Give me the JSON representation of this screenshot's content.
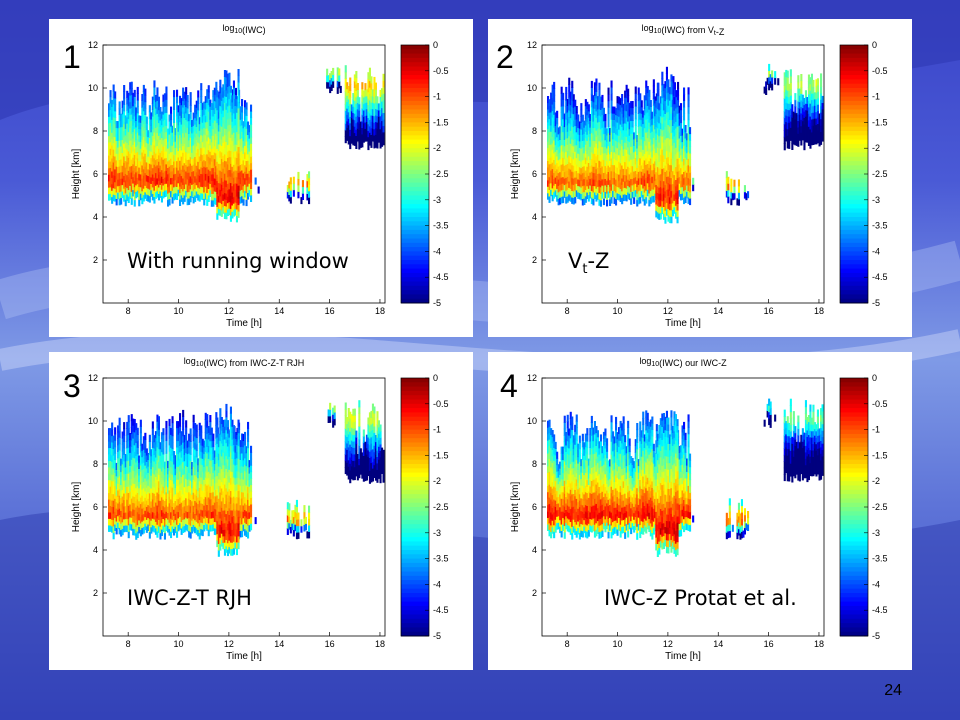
{
  "slide": {
    "page_number": "24"
  },
  "colorscale": {
    "name": "jet",
    "stops": [
      "#00007f",
      "#0000ff",
      "#007fff",
      "#00ffff",
      "#7fff7f",
      "#ffff00",
      "#ff7f00",
      "#ff0000",
      "#7f0000"
    ]
  },
  "chart_data": [
    {
      "type": "heatmap",
      "panel_number": "1",
      "caption": "With running window",
      "title": {
        "main": "log",
        "sub": "10",
        "rest": "(IWC)"
      },
      "xlabel": "Time [h]",
      "ylabel": "Height [km]",
      "xlim": [
        7,
        18.2
      ],
      "ylim": [
        0,
        12
      ],
      "xticks": [
        "8",
        "10",
        "12",
        "14",
        "16",
        "18"
      ],
      "yticks": [
        "2",
        "4",
        "6",
        "8",
        "10",
        "12"
      ],
      "colorbar": {
        "range": [
          -5,
          0
        ],
        "ticks": [
          "0",
          "-0.5",
          "-1",
          "-1.5",
          "-2",
          "-2.5",
          "-3",
          "-3.5",
          "-4",
          "-4.5",
          "-5"
        ]
      },
      "blobs": [
        {
          "x": [
            7.2,
            12.9
          ],
          "base": 4.6,
          "top": 10.4,
          "peak": -0.7,
          "core": 5.6
        },
        {
          "x": [
            11.5,
            12.4
          ],
          "base": 3.8,
          "top": 11.0,
          "peak": -0.4,
          "core": 4.8
        },
        {
          "x": [
            12.9,
            13.3
          ],
          "base": 5.2,
          "top": 6.0,
          "peak": -1.6,
          "core": 5.5
        },
        {
          "x": [
            14.3,
            15.2
          ],
          "base": 4.6,
          "top": 6.4,
          "peak": -1.0,
          "core": 5.4
        },
        {
          "x": [
            15.8,
            16.4
          ],
          "base": 9.8,
          "top": 11.2,
          "peak": -1.8,
          "core": 10.5
        },
        {
          "x": [
            16.6,
            18.1
          ],
          "base": 7.2,
          "top": 11.0,
          "peak": -1.4,
          "core": 10.0
        }
      ]
    },
    {
      "type": "heatmap",
      "panel_number": "2",
      "caption": "Vt-Z",
      "caption_parts": {
        "main": "V",
        "sub": "t",
        "rest": "-Z"
      },
      "title": {
        "main": "log",
        "sub": "10",
        "rest": "(IWC) from V",
        "sub2": "t",
        "rest2": "-Z"
      },
      "xlabel": "Time [h]",
      "ylabel": "Height [km]",
      "xlim": [
        7,
        18.2
      ],
      "ylim": [
        0,
        12
      ],
      "xticks": [
        "8",
        "10",
        "12",
        "14",
        "16",
        "18"
      ],
      "yticks": [
        "2",
        "4",
        "6",
        "8",
        "10",
        "12"
      ],
      "colorbar": {
        "range": [
          -5,
          0
        ],
        "ticks": [
          "0",
          "-0.5",
          "-1",
          "-1.5",
          "-2",
          "-2.5",
          "-3",
          "-3.5",
          "-4",
          "-4.5",
          "-5"
        ]
      },
      "blobs": [
        {
          "x": [
            7.2,
            12.9
          ],
          "base": 4.6,
          "top": 10.4,
          "peak": -0.9,
          "core": 5.5
        },
        {
          "x": [
            11.5,
            12.4
          ],
          "base": 3.8,
          "top": 11.0,
          "peak": -0.6,
          "core": 4.8
        },
        {
          "x": [
            12.9,
            13.3
          ],
          "base": 5.2,
          "top": 6.0,
          "peak": -1.8,
          "core": 5.5
        },
        {
          "x": [
            14.3,
            15.2
          ],
          "base": 4.6,
          "top": 6.4,
          "peak": -1.1,
          "core": 5.3
        },
        {
          "x": [
            15.8,
            16.4
          ],
          "base": 9.8,
          "top": 11.2,
          "peak": -2.2,
          "core": 10.5
        },
        {
          "x": [
            16.6,
            18.1
          ],
          "base": 7.2,
          "top": 11.0,
          "peak": -2.0,
          "core": 10.0
        }
      ]
    },
    {
      "type": "heatmap",
      "panel_number": "3",
      "caption": "IWC-Z-T RJH",
      "title": {
        "main": "log",
        "sub": "10",
        "rest": "(IWC) from IWC-Z-T RJH"
      },
      "xlabel": "Time [h]",
      "ylabel": "Height [km]",
      "xlim": [
        7,
        18.2
      ],
      "ylim": [
        0,
        12
      ],
      "xticks": [
        "8",
        "10",
        "12",
        "14",
        "16",
        "18"
      ],
      "yticks": [
        "2",
        "4",
        "6",
        "8",
        "10",
        "12"
      ],
      "colorbar": {
        "range": [
          -5,
          0
        ],
        "ticks": [
          "0",
          "-0.5",
          "-1",
          "-1.5",
          "-2",
          "-2.5",
          "-3",
          "-3.5",
          "-4",
          "-4.5",
          "-5"
        ]
      },
      "blobs": [
        {
          "x": [
            7.2,
            12.9
          ],
          "base": 4.6,
          "top": 10.4,
          "peak": -0.8,
          "core": 5.5
        },
        {
          "x": [
            11.5,
            12.4
          ],
          "base": 3.8,
          "top": 11.0,
          "peak": -0.5,
          "core": 4.8
        },
        {
          "x": [
            12.9,
            13.3
          ],
          "base": 5.2,
          "top": 6.0,
          "peak": -1.7,
          "core": 5.5
        },
        {
          "x": [
            14.3,
            15.2
          ],
          "base": 4.6,
          "top": 6.4,
          "peak": -1.0,
          "core": 5.3
        },
        {
          "x": [
            15.8,
            16.4
          ],
          "base": 9.8,
          "top": 11.2,
          "peak": -2.0,
          "core": 10.5
        },
        {
          "x": [
            16.6,
            18.1
          ],
          "base": 7.2,
          "top": 11.0,
          "peak": -1.8,
          "core": 10.0
        }
      ]
    },
    {
      "type": "heatmap",
      "panel_number": "4",
      "caption": "IWC-Z Protat et al.",
      "title": {
        "main": "log",
        "sub": "10",
        "rest": "(IWC) our IWC-Z"
      },
      "xlabel": "Time [h]",
      "ylabel": "Height [km]",
      "xlim": [
        7,
        18.2
      ],
      "ylim": [
        0,
        12
      ],
      "xticks": [
        "8",
        "10",
        "12",
        "14",
        "16",
        "18"
      ],
      "yticks": [
        "2",
        "4",
        "6",
        "8",
        "10",
        "12"
      ],
      "colorbar": {
        "range": [
          -5,
          0
        ],
        "ticks": [
          "0",
          "-0.5",
          "-1",
          "-1.5",
          "-2",
          "-2.5",
          "-3",
          "-3.5",
          "-4",
          "-4.5",
          "-5"
        ]
      },
      "blobs": [
        {
          "x": [
            7.2,
            12.9
          ],
          "base": 4.6,
          "top": 10.4,
          "peak": -0.5,
          "core": 5.5
        },
        {
          "x": [
            11.5,
            12.4
          ],
          "base": 3.8,
          "top": 11.0,
          "peak": -0.3,
          "core": 4.8
        },
        {
          "x": [
            12.9,
            13.3
          ],
          "base": 5.2,
          "top": 6.0,
          "peak": -2.0,
          "core": 5.5
        },
        {
          "x": [
            14.3,
            15.2
          ],
          "base": 4.6,
          "top": 6.4,
          "peak": -0.8,
          "core": 5.3
        },
        {
          "x": [
            15.8,
            16.4
          ],
          "base": 9.8,
          "top": 11.2,
          "peak": -2.6,
          "core": 10.5
        },
        {
          "x": [
            16.6,
            18.1
          ],
          "base": 7.2,
          "top": 11.0,
          "peak": -2.4,
          "core": 10.0
        }
      ]
    }
  ]
}
